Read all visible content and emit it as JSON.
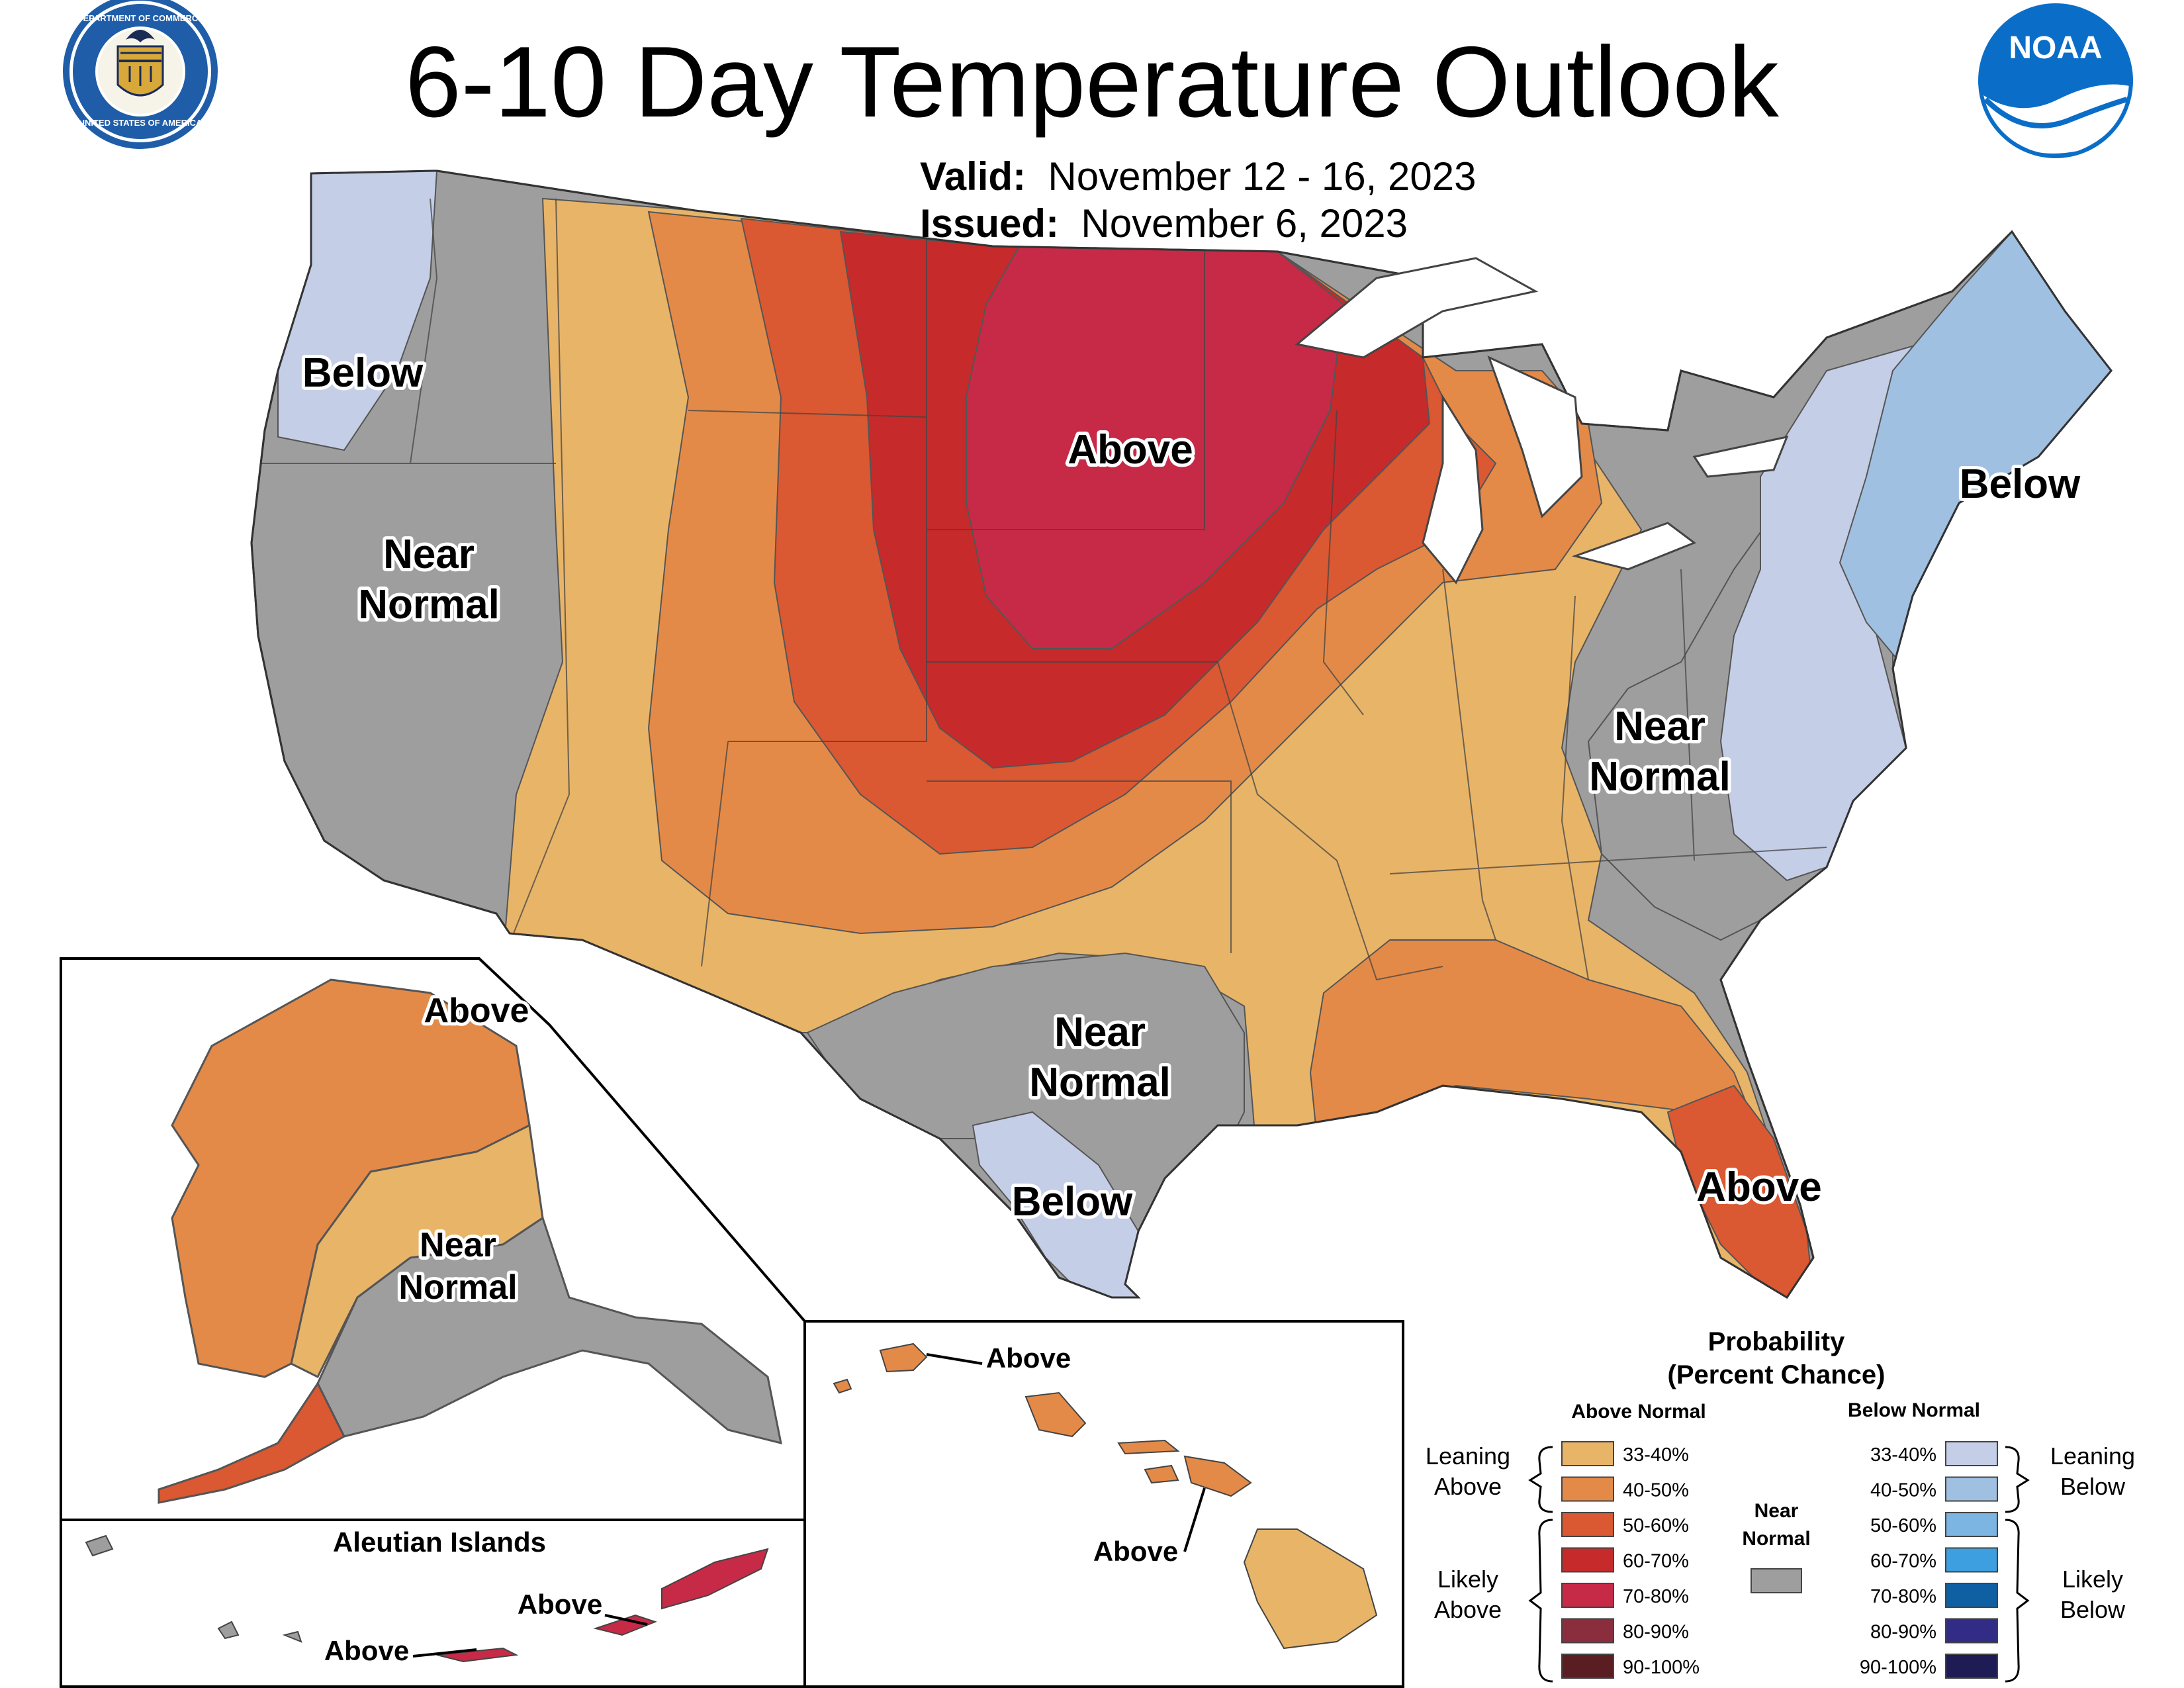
{
  "title": "6-10 Day Temperature Outlook",
  "valid_label": "Valid:",
  "valid_dates": "November 12 - 16, 2023",
  "issued_label": "Issued:",
  "issued_date": "November 6, 2023",
  "logos": {
    "left": "Department of Commerce seal",
    "left_text": "DEPARTMENT OF COMMERCE · UNITED STATES OF AMERICA",
    "right": "NOAA logo",
    "right_text": "NOAA"
  },
  "map_labels": {
    "pacific_nw": "Below",
    "west_1": "Near",
    "west_2": "Normal",
    "north_central": "Above",
    "northeast": "Below",
    "east_1": "Near",
    "east_2": "Normal",
    "texas_1": "Near",
    "texas_2": "Normal",
    "south_texas": "Below",
    "florida": "Above",
    "alaska_north": "Above",
    "alaska_1": "Near",
    "alaska_2": "Normal",
    "aleutian_title": "Aleutian Islands",
    "aleutian_1": "Above",
    "aleutian_2": "Above",
    "hawaii_1": "Above",
    "hawaii_2": "Above"
  },
  "legend": {
    "title_1": "Probability",
    "title_2": "(Percent Chance)",
    "above_header": "Above Normal",
    "below_header": "Below Normal",
    "near_1": "Near",
    "near_2": "Normal",
    "leaning_above_1": "Leaning",
    "leaning_above_2": "Above",
    "likely_above_1": "Likely",
    "likely_above_2": "Above",
    "leaning_below_1": "Leaning",
    "leaning_below_2": "Below",
    "likely_below_1": "Likely",
    "likely_below_2": "Below",
    "above": [
      {
        "range": "33-40%",
        "color": "#E8B468"
      },
      {
        "range": "40-50%",
        "color": "#E48A48"
      },
      {
        "range": "50-60%",
        "color": "#DA5832"
      },
      {
        "range": "60-70%",
        "color": "#C72A2A"
      },
      {
        "range": "70-80%",
        "color": "#C62A47"
      },
      {
        "range": "80-90%",
        "color": "#8A2E3E"
      },
      {
        "range": "90-100%",
        "color": "#5A1E22"
      }
    ],
    "below": [
      {
        "range": "33-40%",
        "color": "#C4CEE6"
      },
      {
        "range": "40-50%",
        "color": "#A0C0E2"
      },
      {
        "range": "50-60%",
        "color": "#7CB4E2"
      },
      {
        "range": "60-70%",
        "color": "#3D9FDF"
      },
      {
        "range": "70-80%",
        "color": "#0F5FA3"
      },
      {
        "range": "80-90%",
        "color": "#322C86"
      },
      {
        "range": "90-100%",
        "color": "#1F1B54"
      }
    ],
    "near_color": "#9E9E9E"
  }
}
